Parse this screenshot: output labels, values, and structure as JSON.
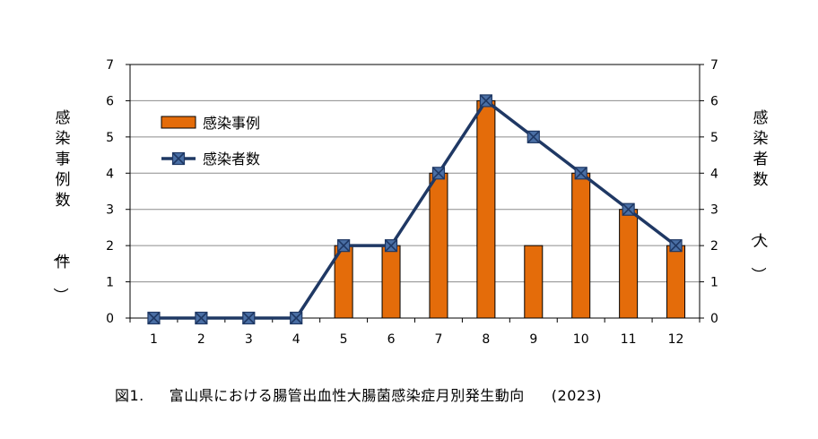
{
  "chart_data": {
    "type": "bar+line",
    "categories": [
      "1",
      "2",
      "3",
      "4",
      "5",
      "6",
      "7",
      "8",
      "9",
      "10",
      "11",
      "12"
    ],
    "series": [
      {
        "name": "感染事例",
        "kind": "bar",
        "axis": "left",
        "values": [
          0,
          0,
          0,
          0,
          2,
          2,
          4,
          6,
          2,
          4,
          3,
          2
        ],
        "color": "#e46c0a",
        "edge_color": "#000000"
      },
      {
        "name": "感染者数",
        "kind": "line",
        "axis": "right",
        "values": [
          0,
          0,
          0,
          0,
          2,
          2,
          4,
          6,
          5,
          4,
          3,
          2
        ],
        "color": "#1f3864",
        "marker": "x-square",
        "marker_color": "#4a6fa5"
      }
    ],
    "ylabel_left": "感染事例数　（件）",
    "ylabel_right": "感染者数　（人）",
    "ylim": [
      0,
      7
    ],
    "yticks": [
      "0",
      "1",
      "2",
      "3",
      "4",
      "5",
      "6",
      "7"
    ],
    "grid": true,
    "legend_position": "top-left"
  },
  "caption": {
    "figure_no": "図1.",
    "text": "富山県における腸管出血性大腸菌感染症月別発生動向",
    "year": "(2023)"
  }
}
